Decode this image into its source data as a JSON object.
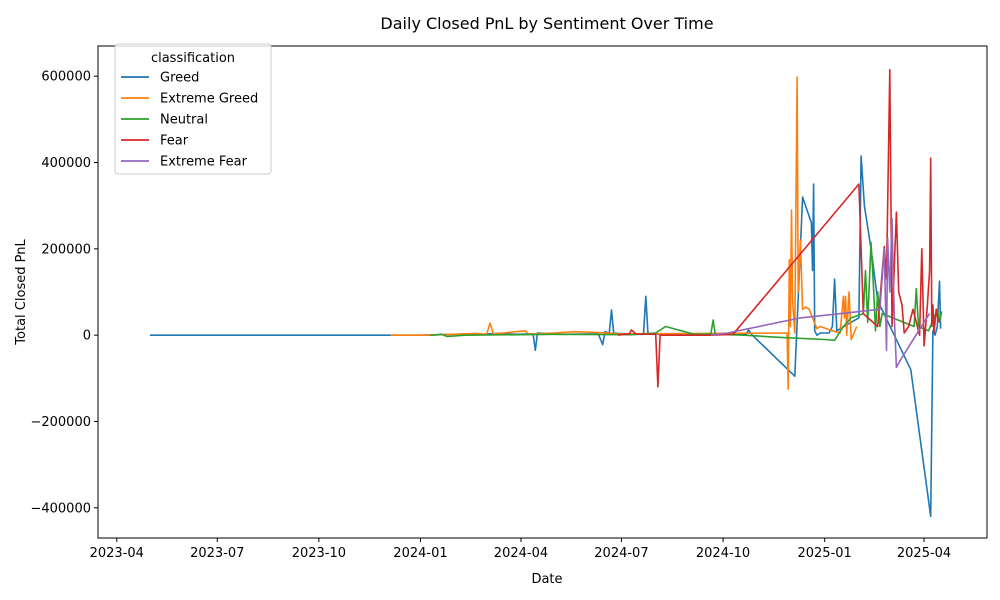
{
  "chart_data": {
    "type": "line",
    "title": "Daily Closed PnL by Sentiment Over Time",
    "xlabel": "Date",
    "ylabel": "Total Closed PnL",
    "grid": false,
    "legend_position": "top-left",
    "legend_title": "classification",
    "xlim": [
      "2023-03-15",
      "2025-05-28"
    ],
    "ylim": [
      -470000,
      670000
    ],
    "x_ticks": [
      {
        "date": "2023-04-01",
        "label": "2023-04"
      },
      {
        "date": "2023-07-01",
        "label": "2023-07"
      },
      {
        "date": "2023-10-01",
        "label": "2023-10"
      },
      {
        "date": "2024-01-01",
        "label": "2024-01"
      },
      {
        "date": "2024-04-01",
        "label": "2024-04"
      },
      {
        "date": "2024-07-01",
        "label": "2024-07"
      },
      {
        "date": "2024-10-01",
        "label": "2024-10"
      },
      {
        "date": "2025-01-01",
        "label": "2025-01"
      },
      {
        "date": "2025-04-01",
        "label": "2025-04"
      }
    ],
    "y_ticks": [
      {
        "value": -400000,
        "label": "−400000"
      },
      {
        "value": -200000,
        "label": "−200000"
      },
      {
        "value": 0,
        "label": "0"
      },
      {
        "value": 200000,
        "label": "200000"
      },
      {
        "value": 400000,
        "label": "400000"
      },
      {
        "value": 600000,
        "label": "600000"
      }
    ],
    "series": [
      {
        "name": "Greed",
        "color": "#1f77b4",
        "points": [
          [
            "2023-05-01",
            0
          ],
          [
            "2023-12-05",
            0
          ],
          [
            "2024-01-05",
            0
          ],
          [
            "2024-01-20",
            1000
          ],
          [
            "2024-02-10",
            3000
          ],
          [
            "2024-02-25",
            2000
          ],
          [
            "2024-03-12",
            4000
          ],
          [
            "2024-03-28",
            2000
          ],
          [
            "2024-04-12",
            3000
          ],
          [
            "2024-04-14",
            -35000
          ],
          [
            "2024-04-16",
            5000
          ],
          [
            "2024-05-05",
            2000
          ],
          [
            "2024-06-10",
            3000
          ],
          [
            "2024-06-14",
            -22000
          ],
          [
            "2024-06-16",
            8000
          ],
          [
            "2024-06-20",
            5000
          ],
          [
            "2024-06-22",
            58000
          ],
          [
            "2024-06-24",
            5000
          ],
          [
            "2024-07-10",
            2000
          ],
          [
            "2024-07-21",
            2000
          ],
          [
            "2024-07-23",
            90000
          ],
          [
            "2024-07-25",
            3000
          ],
          [
            "2024-08-10",
            1000
          ],
          [
            "2024-10-22",
            2000
          ],
          [
            "2024-10-24",
            12000
          ],
          [
            "2024-10-27",
            1000
          ],
          [
            "2024-12-05",
            -95000
          ],
          [
            "2024-12-12",
            320000
          ],
          [
            "2024-12-20",
            260000
          ],
          [
            "2024-12-21",
            150000
          ],
          [
            "2024-12-22",
            350000
          ],
          [
            "2024-12-23",
            10000
          ],
          [
            "2024-12-25",
            0
          ],
          [
            "2024-12-28",
            5000
          ],
          [
            "2025-01-05",
            5000
          ],
          [
            "2025-01-08",
            20000
          ],
          [
            "2025-01-10",
            130000
          ],
          [
            "2025-01-12",
            10000
          ],
          [
            "2025-01-25",
            30000
          ],
          [
            "2025-02-01",
            40000
          ],
          [
            "2025-02-03",
            415000
          ],
          [
            "2025-02-06",
            300000
          ],
          [
            "2025-02-12",
            200000
          ],
          [
            "2025-02-18",
            80000
          ],
          [
            "2025-03-20",
            -80000
          ],
          [
            "2025-04-07",
            -420000
          ],
          [
            "2025-04-09",
            10000
          ],
          [
            "2025-04-11",
            0
          ],
          [
            "2025-04-13",
            20000
          ],
          [
            "2025-04-15",
            125000
          ],
          [
            "2025-04-16",
            15000
          ]
        ]
      },
      {
        "name": "Extreme Greed",
        "color": "#ff7f0e",
        "points": [
          [
            "2023-12-05",
            0
          ],
          [
            "2024-01-01",
            0
          ],
          [
            "2024-02-01",
            2000
          ],
          [
            "2024-02-20",
            4000
          ],
          [
            "2024-03-01",
            2000
          ],
          [
            "2024-03-04",
            28000
          ],
          [
            "2024-03-07",
            3000
          ],
          [
            "2024-04-05",
            10000
          ],
          [
            "2024-04-08",
            2000
          ],
          [
            "2024-05-01",
            5000
          ],
          [
            "2024-05-20",
            8000
          ],
          [
            "2024-06-10",
            6000
          ],
          [
            "2024-07-01",
            3000
          ],
          [
            "2024-11-28",
            5000
          ],
          [
            "2024-11-29",
            -125000
          ],
          [
            "2024-11-30",
            175000
          ],
          [
            "2024-12-01",
            20000
          ],
          [
            "2024-12-02",
            290000
          ],
          [
            "2024-12-03",
            80000
          ],
          [
            "2024-12-05",
            5000
          ],
          [
            "2024-12-07",
            598000
          ],
          [
            "2024-12-08",
            100000
          ],
          [
            "2024-12-10",
            220000
          ],
          [
            "2024-12-12",
            60000
          ],
          [
            "2024-12-15",
            65000
          ],
          [
            "2024-12-18",
            60000
          ],
          [
            "2024-12-25",
            15000
          ],
          [
            "2024-12-28",
            20000
          ],
          [
            "2025-01-08",
            10000
          ],
          [
            "2025-01-15",
            5000
          ],
          [
            "2025-01-18",
            90000
          ],
          [
            "2025-01-19",
            40000
          ],
          [
            "2025-01-20",
            90000
          ],
          [
            "2025-01-21",
            0
          ],
          [
            "2025-01-23",
            100000
          ],
          [
            "2025-01-25",
            -10000
          ],
          [
            "2025-01-30",
            20000
          ]
        ]
      },
      {
        "name": "Neutral",
        "color": "#2ca02c",
        "points": [
          [
            "2024-01-10",
            0
          ],
          [
            "2024-01-20",
            2000
          ],
          [
            "2024-01-25",
            -3000
          ],
          [
            "2024-02-10",
            0
          ],
          [
            "2024-05-01",
            2000
          ],
          [
            "2024-07-10",
            1000
          ],
          [
            "2024-08-01",
            5000
          ],
          [
            "2024-08-10",
            20000
          ],
          [
            "2024-09-05",
            2000
          ],
          [
            "2024-09-20",
            3000
          ],
          [
            "2024-09-22",
            35000
          ],
          [
            "2024-09-24",
            2000
          ],
          [
            "2024-10-20",
            0
          ],
          [
            "2024-11-20",
            -5000
          ],
          [
            "2025-01-01",
            -10000
          ],
          [
            "2025-01-10",
            -12000
          ],
          [
            "2025-01-18",
            20000
          ],
          [
            "2025-01-25",
            40000
          ],
          [
            "2025-02-05",
            50000
          ],
          [
            "2025-02-07",
            150000
          ],
          [
            "2025-02-09",
            30000
          ],
          [
            "2025-02-12",
            215000
          ],
          [
            "2025-02-14",
            120000
          ],
          [
            "2025-02-16",
            10000
          ],
          [
            "2025-02-18",
            100000
          ],
          [
            "2025-02-20",
            20000
          ],
          [
            "2025-02-22",
            50000
          ],
          [
            "2025-03-23",
            20000
          ],
          [
            "2025-03-25",
            108000
          ],
          [
            "2025-03-27",
            20000
          ],
          [
            "2025-04-05",
            10000
          ],
          [
            "2025-04-10",
            40000
          ],
          [
            "2025-04-13",
            60000
          ],
          [
            "2025-04-15",
            30000
          ],
          [
            "2025-04-17",
            55000
          ]
        ]
      },
      {
        "name": "Fear",
        "color": "#d62728",
        "points": [
          [
            "2024-06-28",
            0
          ],
          [
            "2024-07-05",
            3000
          ],
          [
            "2024-07-08",
            2000
          ],
          [
            "2024-07-10",
            12000
          ],
          [
            "2024-07-14",
            3000
          ],
          [
            "2024-08-01",
            2000
          ],
          [
            "2024-08-03",
            -120000
          ],
          [
            "2024-08-05",
            0
          ],
          [
            "2024-09-20",
            0
          ],
          [
            "2024-10-10",
            2000
          ],
          [
            "2025-02-01",
            350000
          ],
          [
            "2025-02-05",
            50000
          ],
          [
            "2025-02-18",
            20000
          ],
          [
            "2025-02-24",
            205000
          ],
          [
            "2025-02-26",
            130000
          ],
          [
            "2025-03-01",
            615000
          ],
          [
            "2025-03-03",
            20000
          ],
          [
            "2025-03-07",
            285000
          ],
          [
            "2025-03-09",
            100000
          ],
          [
            "2025-03-12",
            70000
          ],
          [
            "2025-03-14",
            5000
          ],
          [
            "2025-03-18",
            20000
          ],
          [
            "2025-03-22",
            60000
          ],
          [
            "2025-03-28",
            0
          ],
          [
            "2025-03-30",
            200000
          ],
          [
            "2025-04-01",
            -25000
          ],
          [
            "2025-04-04",
            70000
          ],
          [
            "2025-04-06",
            150000
          ],
          [
            "2025-04-07",
            410000
          ],
          [
            "2025-04-08",
            20000
          ],
          [
            "2025-04-09",
            70000
          ],
          [
            "2025-04-10",
            5000
          ],
          [
            "2025-04-12",
            60000
          ],
          [
            "2025-04-14",
            30000
          ]
        ]
      },
      {
        "name": "Extreme Fear",
        "color": "#9467bd",
        "points": [
          [
            "2024-09-20",
            0
          ],
          [
            "2024-10-05",
            5000
          ],
          [
            "2024-12-10",
            40000
          ],
          [
            "2025-02-20",
            60000
          ],
          [
            "2025-02-24",
            200000
          ],
          [
            "2025-02-26",
            -35000
          ],
          [
            "2025-02-27",
            225000
          ],
          [
            "2025-03-01",
            100000
          ],
          [
            "2025-03-03",
            270000
          ],
          [
            "2025-03-05",
            50000
          ],
          [
            "2025-03-07",
            -75000
          ],
          [
            "2025-03-10",
            -60000
          ],
          [
            "2025-04-01",
            30000
          ],
          [
            "2025-04-06",
            50000
          ]
        ]
      }
    ]
  }
}
